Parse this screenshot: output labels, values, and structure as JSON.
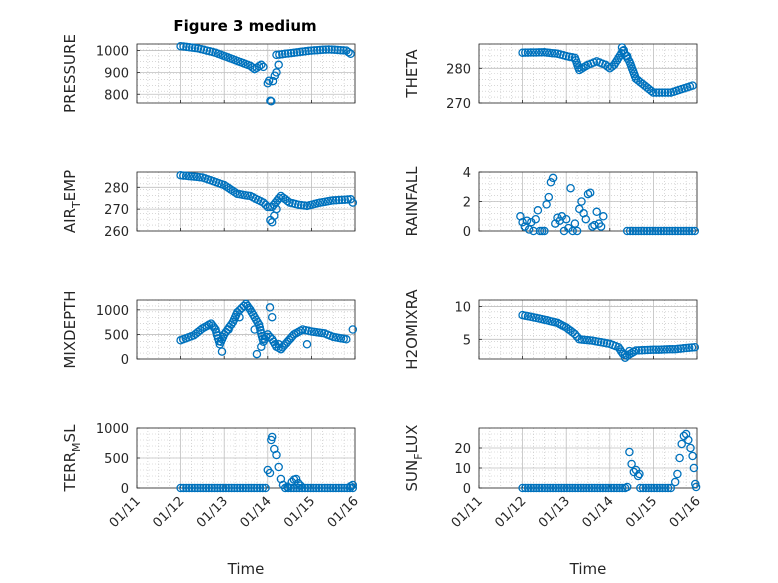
{
  "title": "Figure 3 medium",
  "x_axis_label": "Time",
  "colors": {
    "marker": "#0072BD",
    "axis": "#262626",
    "grid": "#bfbfbf"
  },
  "chart_data": [
    {
      "type": "scatter",
      "name": "pressure",
      "ylabel": "PRESSURE",
      "ylabel_sub": "",
      "xlim": [
        11,
        16
      ],
      "ylim": [
        760,
        1030
      ],
      "yticks": [
        800,
        900,
        1000
      ],
      "xticks": [],
      "show_xtick_labels": false,
      "segments": [
        [
          12.0,
          1020
        ],
        [
          12.4,
          1010
        ],
        [
          12.8,
          990
        ],
        [
          13.2,
          960
        ],
        [
          13.6,
          930
        ],
        [
          13.7,
          915
        ],
        [
          13.85,
          935
        ],
        [
          13.9,
          925
        ]
      ],
      "points": [
        [
          14.0,
          850
        ],
        [
          14.03,
          862
        ],
        [
          14.06,
          770
        ],
        [
          14.08,
          768
        ],
        [
          14.12,
          860
        ],
        [
          14.16,
          885
        ],
        [
          14.2,
          900
        ],
        [
          14.25,
          935
        ]
      ],
      "segments2": [
        [
          14.2,
          980
        ],
        [
          14.6,
          990
        ],
        [
          15.0,
          1000
        ],
        [
          15.4,
          1005
        ],
        [
          15.8,
          1000
        ],
        [
          15.9,
          985
        ]
      ]
    },
    {
      "type": "scatter",
      "name": "theta",
      "ylabel": "THETA",
      "ylabel_sub": "",
      "xlim": [
        11,
        16
      ],
      "ylim": [
        270,
        287
      ],
      "yticks": [
        270,
        280
      ],
      "xticks": [],
      "show_xtick_labels": false,
      "segments": [
        [
          12.0,
          284.5
        ],
        [
          12.5,
          284.6
        ],
        [
          12.8,
          284.2
        ],
        [
          13.0,
          283.5
        ],
        [
          13.2,
          283
        ],
        [
          13.3,
          279.5
        ],
        [
          13.5,
          281
        ],
        [
          13.7,
          282
        ],
        [
          13.9,
          281
        ],
        [
          14.0,
          280
        ],
        [
          14.1,
          281
        ],
        [
          14.2,
          283
        ],
        [
          14.3,
          285
        ],
        [
          14.45,
          282
        ],
        [
          14.6,
          277
        ],
        [
          14.8,
          275
        ],
        [
          15.0,
          273
        ],
        [
          15.4,
          273
        ],
        [
          15.9,
          275
        ]
      ],
      "points": [
        [
          14.28,
          286
        ],
        [
          14.32,
          285.2
        ],
        [
          14.4,
          283.5
        ]
      ],
      "segments2": []
    },
    {
      "type": "scatter",
      "name": "air_temp",
      "ylabel": "AIR",
      "ylabel_sub": "T",
      "ylabel_rest": "EMP",
      "xlim": [
        11,
        16
      ],
      "ylim": [
        260,
        287
      ],
      "yticks": [
        260,
        270,
        280
      ],
      "xticks": [],
      "show_xtick_labels": false,
      "segments": [
        [
          12.0,
          285.5
        ],
        [
          12.5,
          284.5
        ],
        [
          13.0,
          281
        ],
        [
          13.3,
          277
        ],
        [
          13.6,
          276
        ],
        [
          13.9,
          273
        ],
        [
          14.0,
          271
        ],
        [
          14.1,
          271
        ],
        [
          14.3,
          276
        ],
        [
          14.5,
          273
        ],
        [
          14.7,
          272
        ],
        [
          14.9,
          271.5
        ],
        [
          15.2,
          273
        ],
        [
          15.5,
          274
        ],
        [
          15.9,
          274.5
        ],
        [
          15.95,
          273
        ]
      ],
      "points": [
        [
          14.06,
          265
        ],
        [
          14.1,
          264
        ],
        [
          14.2,
          270
        ],
        [
          14.15,
          267
        ]
      ],
      "segments2": []
    },
    {
      "type": "scatter",
      "name": "rainfall",
      "ylabel": "RAINFALL",
      "ylabel_sub": "",
      "xlim": [
        11,
        16
      ],
      "ylim": [
        0,
        4
      ],
      "yticks": [
        0,
        2,
        4
      ],
      "xticks": [],
      "show_xtick_labels": false,
      "segments": [
        [
          14.4,
          0
        ],
        [
          15.95,
          0
        ]
      ],
      "points": [
        [
          11.95,
          1.0
        ],
        [
          12.0,
          0.6
        ],
        [
          12.05,
          0.3
        ],
        [
          12.1,
          0.7
        ],
        [
          12.15,
          0.1
        ],
        [
          12.2,
          0.6
        ],
        [
          12.25,
          0
        ],
        [
          12.3,
          0.8
        ],
        [
          12.35,
          1.4
        ],
        [
          12.4,
          0
        ],
        [
          12.5,
          0
        ],
        [
          12.55,
          1.8
        ],
        [
          12.6,
          2.3
        ],
        [
          12.65,
          3.3
        ],
        [
          12.7,
          3.6
        ],
        [
          12.75,
          0.5
        ],
        [
          12.8,
          0.9
        ],
        [
          12.85,
          0.7
        ],
        [
          12.9,
          1.0
        ],
        [
          12.95,
          0
        ],
        [
          13.0,
          0.8
        ],
        [
          13.05,
          0.2
        ],
        [
          13.1,
          2.9
        ],
        [
          13.15,
          0
        ],
        [
          13.2,
          0.5
        ],
        [
          13.3,
          1.5
        ],
        [
          13.35,
          2.0
        ],
        [
          13.4,
          1.2
        ],
        [
          13.45,
          0.8
        ],
        [
          13.5,
          2.5
        ],
        [
          13.55,
          2.6
        ],
        [
          13.6,
          0.3
        ],
        [
          13.65,
          0.4
        ],
        [
          13.7,
          1.3
        ],
        [
          13.75,
          0.5
        ],
        [
          13.8,
          0.3
        ],
        [
          13.85,
          1.0
        ],
        [
          12.45,
          0
        ],
        [
          13.25,
          0
        ]
      ],
      "segments2": []
    },
    {
      "type": "scatter",
      "name": "mixdepth",
      "ylabel": "MIXDEPTH",
      "ylabel_sub": "",
      "xlim": [
        11,
        16
      ],
      "ylim": [
        0,
        1200
      ],
      "yticks": [
        0,
        500,
        1000
      ],
      "xticks": [],
      "show_xtick_labels": false,
      "segments": [
        [
          12.0,
          380
        ],
        [
          12.3,
          480
        ],
        [
          12.5,
          620
        ],
        [
          12.7,
          720
        ],
        [
          12.8,
          600
        ],
        [
          12.9,
          300
        ],
        [
          13.0,
          500
        ],
        [
          13.2,
          750
        ],
        [
          13.3,
          950
        ],
        [
          13.5,
          1120
        ],
        [
          13.6,
          1000
        ],
        [
          13.8,
          700
        ],
        [
          13.9,
          350
        ],
        [
          14.0,
          500
        ],
        [
          14.1,
          400
        ],
        [
          14.2,
          250
        ],
        [
          14.3,
          200
        ],
        [
          14.45,
          350
        ],
        [
          14.6,
          500
        ],
        [
          14.8,
          600
        ],
        [
          15.0,
          560
        ],
        [
          15.3,
          520
        ],
        [
          15.5,
          450
        ],
        [
          15.8,
          400
        ]
      ],
      "points": [
        [
          12.95,
          150
        ],
        [
          13.35,
          850
        ],
        [
          13.75,
          100
        ],
        [
          13.85,
          250
        ],
        [
          14.05,
          1050
        ],
        [
          14.1,
          850
        ],
        [
          14.25,
          300
        ],
        [
          14.9,
          300
        ],
        [
          15.95,
          600
        ],
        [
          13.1,
          600
        ],
        [
          13.7,
          600
        ]
      ],
      "segments2": []
    },
    {
      "type": "scatter",
      "name": "h2omixra",
      "ylabel": "H2OMIXRA",
      "ylabel_sub": "",
      "xlim": [
        11,
        16
      ],
      "ylim": [
        2,
        11
      ],
      "yticks": [
        5,
        10
      ],
      "xticks": [],
      "show_xtick_labels": false,
      "segments": [
        [
          12.0,
          8.7
        ],
        [
          12.5,
          8.0
        ],
        [
          12.8,
          7.5
        ],
        [
          13.0,
          6.8
        ],
        [
          13.2,
          5.8
        ],
        [
          13.3,
          5.0
        ],
        [
          13.6,
          4.8
        ],
        [
          14.0,
          4.3
        ],
        [
          14.2,
          3.8
        ],
        [
          14.3,
          2.8
        ],
        [
          14.4,
          2.5
        ],
        [
          14.6,
          3.3
        ],
        [
          15.0,
          3.4
        ],
        [
          15.5,
          3.5
        ],
        [
          15.95,
          3.8
        ]
      ],
      "points": [
        [
          14.35,
          2.2
        ],
        [
          14.45,
          3.2
        ]
      ],
      "segments2": []
    },
    {
      "type": "scatter",
      "name": "terr_msl",
      "ylabel": "TERR",
      "ylabel_sub": "M",
      "ylabel_rest": "SL",
      "xlim": [
        11,
        16
      ],
      "ylim": [
        0,
        1000
      ],
      "yticks": [
        0,
        500,
        1000
      ],
      "xticks": [
        11,
        12,
        13,
        14,
        15,
        16
      ],
      "show_xtick_labels": true,
      "xtick_labels": [
        "01/11",
        "01/12",
        "01/13",
        "01/14",
        "01/15",
        "01/16"
      ],
      "segments": [
        [
          12.0,
          0
        ],
        [
          13.95,
          0
        ],
        [
          14.4,
          0
        ],
        [
          15.95,
          0
        ]
      ],
      "points": [
        [
          14.0,
          300
        ],
        [
          14.05,
          250
        ],
        [
          14.08,
          800
        ],
        [
          14.1,
          850
        ],
        [
          14.15,
          650
        ],
        [
          14.2,
          550
        ],
        [
          14.25,
          350
        ],
        [
          14.3,
          150
        ],
        [
          14.35,
          50
        ],
        [
          14.45,
          20
        ],
        [
          14.55,
          100
        ],
        [
          14.6,
          140
        ],
        [
          14.65,
          150
        ],
        [
          14.7,
          80
        ],
        [
          14.75,
          40
        ],
        [
          15.9,
          30
        ],
        [
          15.95,
          50
        ]
      ],
      "segments2": []
    },
    {
      "type": "scatter",
      "name": "sun_flux",
      "ylabel": "SUN",
      "ylabel_sub": "F",
      "ylabel_rest": "LUX",
      "xlim": [
        11,
        16
      ],
      "ylim": [
        0,
        30
      ],
      "yticks": [
        0,
        10,
        20
      ],
      "xticks": [
        11,
        12,
        13,
        14,
        15,
        16
      ],
      "show_xtick_labels": true,
      "xtick_labels": [
        "01/11",
        "01/12",
        "01/13",
        "01/14",
        "01/15",
        "01/16"
      ],
      "segments": [
        [
          12.0,
          0
        ],
        [
          14.35,
          0
        ],
        [
          14.7,
          0
        ],
        [
          15.4,
          0
        ]
      ],
      "points": [
        [
          14.4,
          0.5
        ],
        [
          14.45,
          18
        ],
        [
          14.5,
          12
        ],
        [
          14.55,
          8
        ],
        [
          14.6,
          9
        ],
        [
          14.65,
          6
        ],
        [
          14.68,
          7
        ],
        [
          15.5,
          3
        ],
        [
          15.55,
          7
        ],
        [
          15.6,
          15
        ],
        [
          15.65,
          22
        ],
        [
          15.7,
          26
        ],
        [
          15.75,
          27
        ],
        [
          15.8,
          24
        ],
        [
          15.85,
          20
        ],
        [
          15.9,
          16
        ],
        [
          15.93,
          10
        ],
        [
          15.96,
          2
        ],
        [
          15.98,
          0.5
        ]
      ],
      "segments2": []
    }
  ]
}
